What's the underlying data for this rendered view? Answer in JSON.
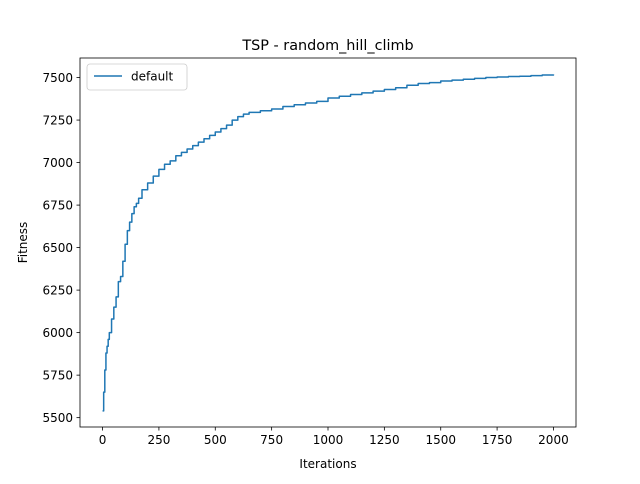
{
  "chart_data": {
    "type": "line",
    "title": "TSP - random_hill_climb",
    "xlabel": "Iterations",
    "ylabel": "Fitness",
    "xlim": [
      -100,
      2100
    ],
    "ylim": [
      5445,
      7615
    ],
    "xticks": [
      0,
      250,
      500,
      750,
      1000,
      1250,
      1500,
      1750,
      2000
    ],
    "yticks": [
      5500,
      5750,
      6000,
      6250,
      6500,
      6750,
      7000,
      7250,
      7500
    ],
    "grid": false,
    "legend_position": "top-left",
    "series": [
      {
        "name": "default",
        "color": "#1f77b4",
        "x": [
          0,
          5,
          10,
          15,
          20,
          25,
          30,
          40,
          50,
          60,
          70,
          80,
          90,
          100,
          110,
          120,
          130,
          140,
          150,
          160,
          175,
          200,
          225,
          250,
          275,
          300,
          325,
          350,
          375,
          400,
          425,
          450,
          475,
          500,
          525,
          550,
          575,
          600,
          625,
          650,
          700,
          750,
          800,
          850,
          900,
          950,
          1000,
          1050,
          1100,
          1150,
          1200,
          1250,
          1300,
          1350,
          1400,
          1450,
          1500,
          1550,
          1600,
          1650,
          1700,
          1750,
          1800,
          1850,
          1900,
          1950,
          2000
        ],
        "y": [
          5540,
          5650,
          5780,
          5880,
          5920,
          5960,
          6000,
          6080,
          6150,
          6210,
          6300,
          6330,
          6420,
          6520,
          6600,
          6650,
          6700,
          6740,
          6760,
          6790,
          6840,
          6880,
          6920,
          6960,
          6990,
          7010,
          7040,
          7060,
          7080,
          7100,
          7120,
          7140,
          7160,
          7180,
          7200,
          7220,
          7250,
          7270,
          7285,
          7295,
          7305,
          7315,
          7330,
          7340,
          7350,
          7360,
          7380,
          7390,
          7400,
          7410,
          7420,
          7430,
          7440,
          7455,
          7465,
          7470,
          7480,
          7485,
          7490,
          7495,
          7500,
          7503,
          7506,
          7508,
          7511,
          7515,
          7519
        ]
      }
    ]
  }
}
